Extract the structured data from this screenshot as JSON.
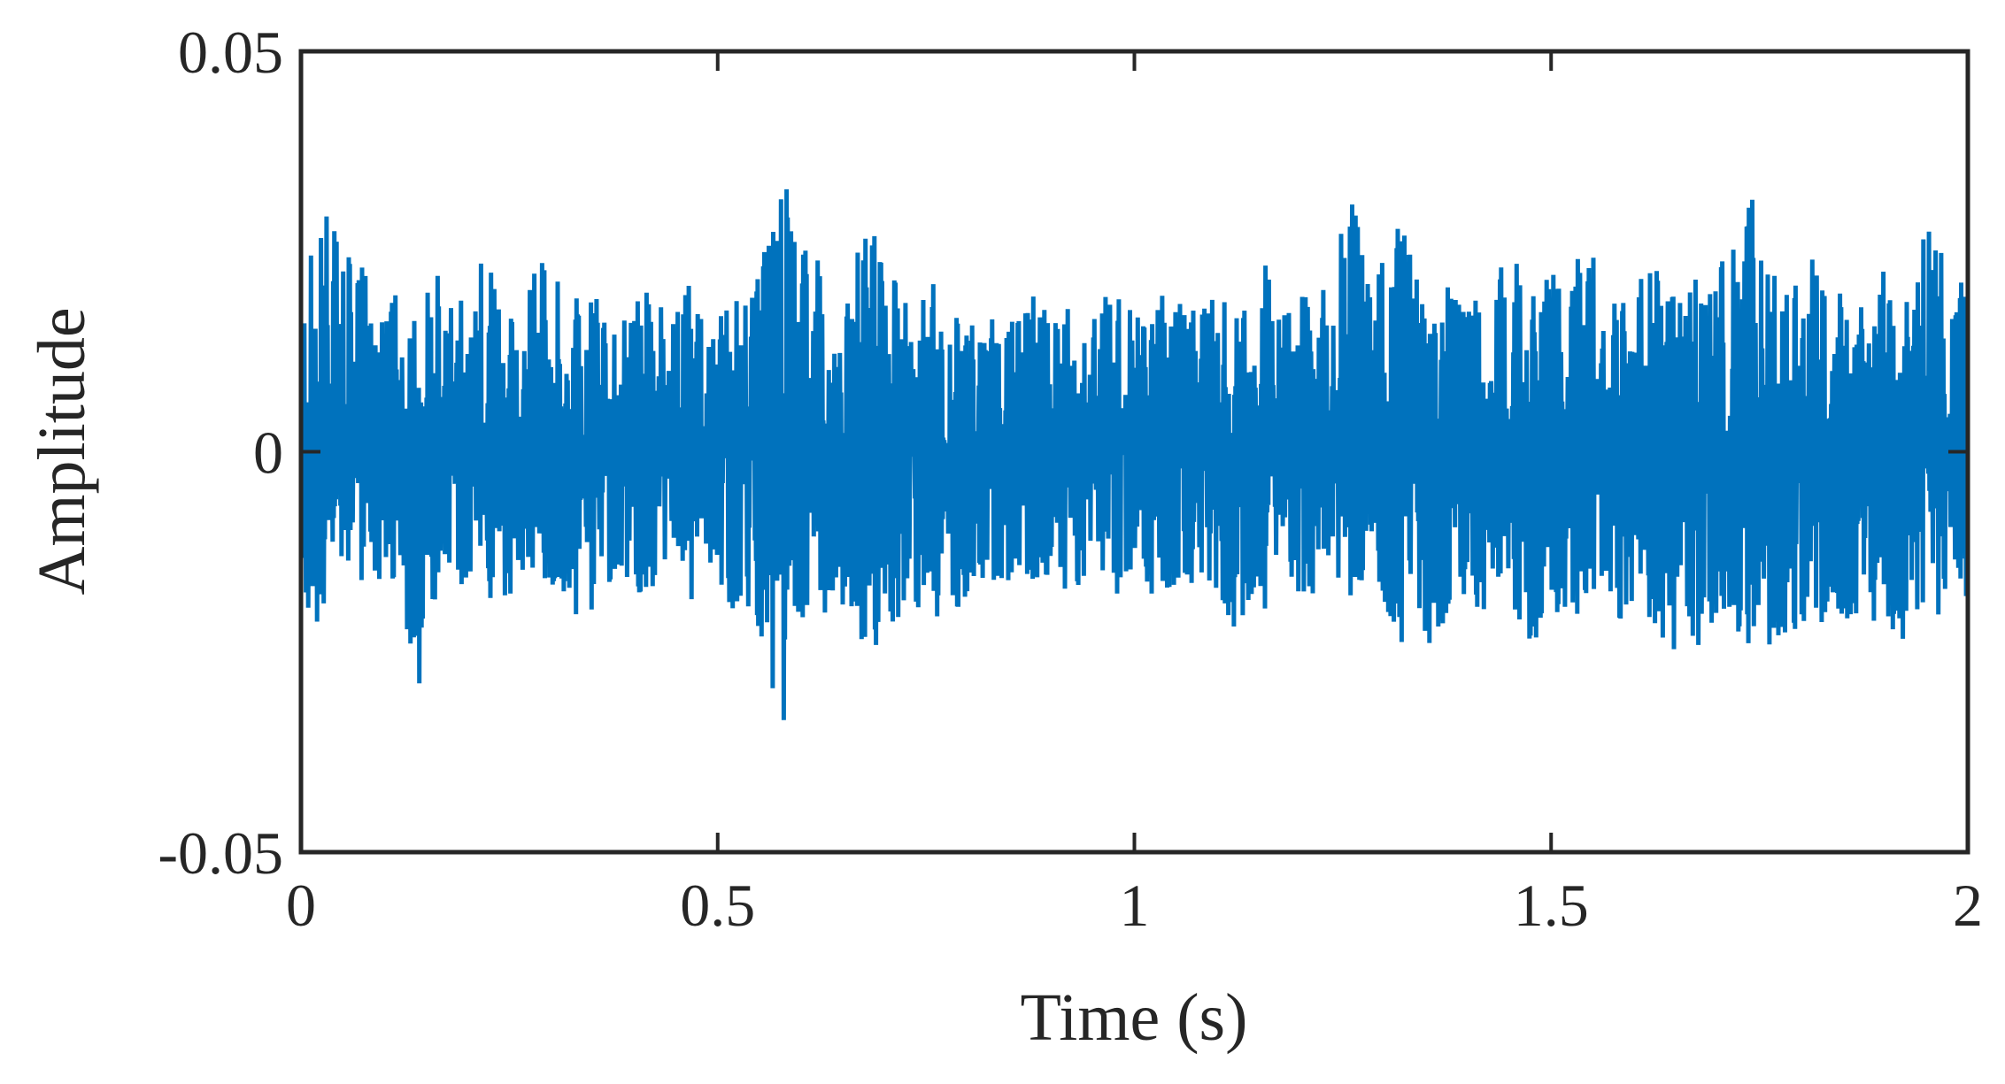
{
  "chart_data": {
    "type": "line",
    "title": "",
    "xlabel": "Time (s)",
    "ylabel": "Amplitude",
    "xlim": [
      0,
      2
    ],
    "ylim": [
      -0.05,
      0.05
    ],
    "xticks": [
      0,
      0.5,
      1,
      1.5,
      2
    ],
    "xtick_labels": [
      "0",
      "0.5",
      "1",
      "1.5",
      "2"
    ],
    "yticks": [
      -0.05,
      0,
      0.05
    ],
    "ytick_labels": [
      "-0.05",
      "0",
      "0.05"
    ],
    "grid": false,
    "legend": "none",
    "series": [
      {
        "color": "#0072BD",
        "x": [
          0,
          0.02,
          0.04,
          0.06,
          0.08,
          0.1,
          0.12,
          0.14,
          0.16,
          0.18,
          0.2,
          0.22,
          0.24,
          0.26,
          0.28,
          0.3,
          0.32,
          0.34,
          0.36,
          0.38,
          0.4,
          0.42,
          0.44,
          0.46,
          0.48,
          0.5,
          0.52,
          0.54,
          0.56,
          0.58,
          0.6,
          0.62,
          0.64,
          0.66,
          0.68,
          0.7,
          0.72,
          0.74,
          0.76,
          0.78,
          0.8,
          0.82,
          0.84,
          0.86,
          0.88,
          0.9,
          0.92,
          0.94,
          0.96,
          0.98,
          1.0,
          1.02,
          1.04,
          1.06,
          1.08,
          1.1,
          1.12,
          1.14,
          1.16,
          1.18,
          1.2,
          1.22,
          1.24,
          1.26,
          1.28,
          1.3,
          1.32,
          1.34,
          1.36,
          1.38,
          1.4,
          1.42,
          1.44,
          1.46,
          1.48,
          1.5,
          1.52,
          1.54,
          1.56,
          1.58,
          1.6,
          1.62,
          1.64,
          1.66,
          1.68,
          1.7,
          1.72,
          1.74,
          1.76,
          1.78,
          1.8,
          1.82,
          1.84,
          1.86,
          1.88,
          1.9,
          1.92,
          1.94,
          1.96,
          1.98,
          2.0
        ],
        "upper": [
          0.022,
          0.028,
          0.031,
          0.024,
          0.023,
          0.016,
          0.022,
          0.02,
          0.024,
          0.018,
          0.02,
          0.026,
          0.021,
          0.018,
          0.023,
          0.025,
          0.018,
          0.021,
          0.02,
          0.016,
          0.019,
          0.021,
          0.018,
          0.022,
          0.019,
          0.017,
          0.02,
          0.019,
          0.028,
          0.035,
          0.027,
          0.024,
          0.018,
          0.022,
          0.03,
          0.024,
          0.021,
          0.019,
          0.022,
          0.018,
          0.016,
          0.018,
          0.017,
          0.018,
          0.021,
          0.016,
          0.019,
          0.017,
          0.02,
          0.021,
          0.017,
          0.019,
          0.02,
          0.018,
          0.019,
          0.021,
          0.017,
          0.02,
          0.024,
          0.019,
          0.021,
          0.018,
          0.026,
          0.032,
          0.024,
          0.026,
          0.03,
          0.023,
          0.02,
          0.021,
          0.019,
          0.022,
          0.024,
          0.026,
          0.021,
          0.023,
          0.02,
          0.027,
          0.022,
          0.019,
          0.021,
          0.024,
          0.02,
          0.023,
          0.021,
          0.024,
          0.026,
          0.033,
          0.025,
          0.022,
          0.021,
          0.026,
          0.022,
          0.024,
          0.021,
          0.023,
          0.02,
          0.024,
          0.032,
          0.022,
          0.021
        ],
        "lower": [
          -0.021,
          -0.024,
          -0.019,
          -0.016,
          -0.018,
          -0.015,
          -0.017,
          -0.032,
          -0.019,
          -0.016,
          -0.017,
          -0.018,
          -0.023,
          -0.016,
          -0.021,
          -0.017,
          -0.019,
          -0.022,
          -0.019,
          -0.016,
          -0.018,
          -0.017,
          -0.016,
          -0.019,
          -0.018,
          -0.017,
          -0.02,
          -0.021,
          -0.026,
          -0.038,
          -0.026,
          -0.02,
          -0.021,
          -0.024,
          -0.026,
          -0.024,
          -0.022,
          -0.02,
          -0.023,
          -0.021,
          -0.018,
          -0.016,
          -0.017,
          -0.015,
          -0.017,
          -0.016,
          -0.018,
          -0.017,
          -0.016,
          -0.018,
          -0.017,
          -0.019,
          -0.018,
          -0.017,
          -0.016,
          -0.018,
          -0.022,
          -0.019,
          -0.02,
          -0.018,
          -0.019,
          -0.02,
          -0.019,
          -0.018,
          -0.017,
          -0.02,
          -0.024,
          -0.026,
          -0.023,
          -0.02,
          -0.019,
          -0.021,
          -0.018,
          -0.022,
          -0.024,
          -0.02,
          -0.022,
          -0.019,
          -0.018,
          -0.021,
          -0.02,
          -0.023,
          -0.024,
          -0.027,
          -0.024,
          -0.022,
          -0.021,
          -0.033,
          -0.026,
          -0.024,
          -0.022,
          -0.021,
          -0.024,
          -0.023,
          -0.022,
          -0.021,
          -0.024,
          -0.02,
          -0.021,
          -0.019,
          -0.018
        ]
      }
    ]
  }
}
